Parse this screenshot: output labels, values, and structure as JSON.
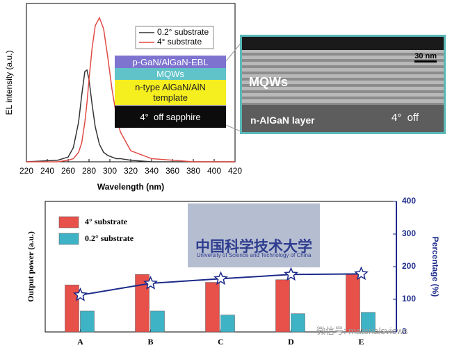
{
  "chart_data": [
    {
      "type": "line",
      "x_label": "Wavelength (nm)",
      "y_label": "EL intensity (a.u.)",
      "x": [
        220,
        250,
        260,
        265,
        270,
        273,
        276,
        278,
        280,
        283,
        286,
        290,
        294,
        298,
        302,
        306,
        310,
        320,
        340,
        380,
        420
      ],
      "series": [
        {
          "name": "0.2° substrate",
          "color": "#333333",
          "values": [
            0,
            0.01,
            0.03,
            0.09,
            0.25,
            0.42,
            0.57,
            0.58,
            0.52,
            0.36,
            0.22,
            0.11,
            0.06,
            0.04,
            0.03,
            0.02,
            0.02,
            0.01,
            0,
            0,
            0
          ]
        },
        {
          "name": "4° substrate",
          "color": "#e04a44",
          "values": [
            0,
            0,
            0.01,
            0.02,
            0.06,
            0.12,
            0.25,
            0.37,
            0.52,
            0.72,
            0.86,
            0.91,
            0.84,
            0.66,
            0.46,
            0.3,
            0.19,
            0.07,
            0.02,
            0,
            0
          ]
        }
      ],
      "xlim": [
        220,
        420
      ],
      "xticks": [
        220,
        240,
        260,
        280,
        300,
        320,
        340,
        360,
        380,
        400,
        420
      ],
      "ylim": [
        0,
        1
      ],
      "layers": [
        "p-GaN/AlGaN-EBL",
        "MQWs",
        "n-type AlGaN/AlN template",
        "4°  off sapphire"
      ],
      "inset": {
        "scale": "30 nm",
        "top_region": "MQWs",
        "bottom_region": "n-AlGaN layer",
        "angle": "4°  off"
      }
    },
    {
      "type": "bar",
      "y_label": "Output power (a.u.)",
      "y2_label": "Percentage (%)",
      "categories": [
        "A",
        "B",
        "C",
        "D",
        "E"
      ],
      "series": [
        {
          "name": "4° substrate",
          "color": "#e8504a",
          "values": [
            0.36,
            0.44,
            0.38,
            0.4,
            0.44
          ]
        },
        {
          "name": "0.2° substrate",
          "color": "#3fb3c6",
          "values": [
            0.16,
            0.16,
            0.13,
            0.14,
            0.15
          ]
        },
        {
          "color": "#1c2a8a",
          "axis": "y2",
          "values": [
            113,
            149,
            163,
            176,
            178
          ]
        }
      ],
      "ylim": [
        0,
        1
      ],
      "y2lim": [
        0,
        400
      ],
      "y2ticks": [
        0,
        100,
        200,
        300,
        400
      ],
      "logo": {
        "chinese": "中国科学技术大学",
        "english": "University of Science and Technology of China"
      },
      "watermark": "微信号: materialsviews"
    }
  ]
}
